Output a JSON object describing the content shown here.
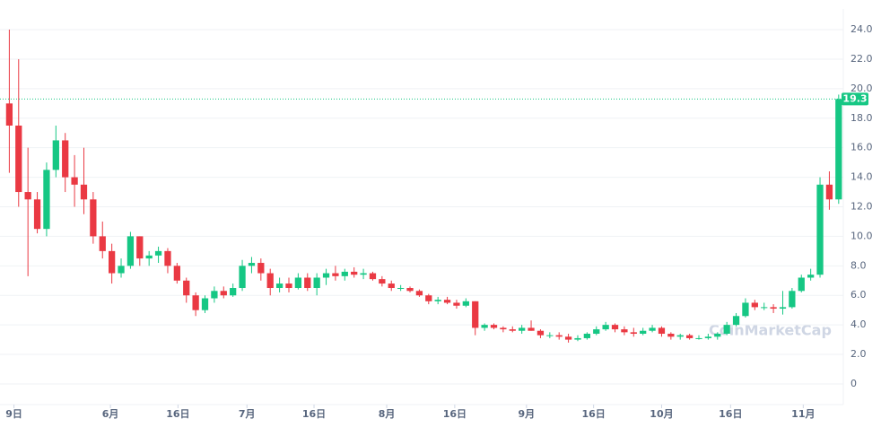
{
  "chart_data": {
    "type": "candlestick",
    "x": [
      0,
      2,
      4,
      6,
      8,
      10,
      12,
      14,
      16,
      18,
      20,
      22,
      24,
      26,
      28,
      30,
      32,
      34,
      36,
      38,
      40,
      42,
      44,
      46,
      48,
      50,
      52,
      54,
      56,
      58,
      60,
      62,
      64,
      66,
      68,
      70,
      72,
      74,
      76,
      78,
      80,
      82,
      84,
      86,
      88,
      90,
      92,
      94,
      96,
      98,
      100,
      102,
      104,
      106,
      108,
      110,
      112,
      114,
      116,
      118,
      120,
      122,
      124,
      126,
      128,
      130,
      132,
      134,
      136,
      138,
      140,
      142,
      144,
      146,
      148,
      150,
      152,
      154,
      156,
      158,
      160,
      162,
      164,
      166,
      168,
      170,
      172,
      174,
      176,
      178
    ],
    "open": [
      19,
      17.5,
      13,
      12.5,
      10.5,
      14.5,
      16.5,
      14,
      13.5,
      12.5,
      10,
      9,
      7.5,
      8,
      10,
      8.5,
      8.7,
      9,
      8,
      7,
      6,
      5,
      5.8,
      6.3,
      6,
      6.5,
      8,
      8.2,
      7.5,
      6.5,
      6.8,
      6.5,
      7.2,
      6.5,
      7.2,
      7.5,
      7.3,
      7.6,
      7.4,
      7.5,
      7.1,
      6.8,
      6.5,
      6.5,
      6.3,
      6,
      5.6,
      5.7,
      5.5,
      5.3,
      5.6,
      3.8,
      4,
      3.8,
      3.7,
      3.6,
      3.8,
      3.6,
      3.3,
      3.3,
      3.2,
      3,
      3.1,
      3.4,
      3.7,
      4,
      3.7,
      3.5,
      3.4,
      3.6,
      3.8,
      3.4,
      3.2,
      3.3,
      3.1,
      3.1,
      3.2,
      3.4,
      4,
      4.6,
      5.5,
      5.2,
      5.2,
      5.1,
      5.2,
      6.3,
      7.2,
      7.4,
      13.5,
      12.5
    ],
    "high": [
      24,
      22,
      16,
      13,
      15,
      17.5,
      17,
      15.5,
      16,
      13,
      11,
      9.5,
      8.5,
      10.3,
      10,
      9,
      9.3,
      9.2,
      8.2,
      7.2,
      6.2,
      6,
      6.6,
      6.6,
      6.8,
      8.4,
      8.6,
      8.5,
      7.8,
      7.2,
      7.2,
      7.5,
      7.5,
      7.5,
      7.8,
      8,
      7.8,
      7.9,
      7.8,
      7.6,
      7.3,
      7,
      6.7,
      6.6,
      6.4,
      6.1,
      5.9,
      5.9,
      5.7,
      5.8,
      5.6,
      4.1,
      4.1,
      3.9,
      3.9,
      4,
      4.3,
      3.7,
      3.5,
      3.5,
      3.4,
      3.3,
      3.5,
      3.9,
      4.2,
      4.1,
      3.9,
      3.8,
      3.8,
      4,
      3.9,
      3.5,
      3.4,
      3.4,
      3.3,
      3.4,
      3.5,
      4.2,
      4.8,
      5.8,
      5.7,
      5.5,
      5.4,
      6.3,
      6.5,
      7.4,
      7.8,
      14,
      14.4,
      19.6
    ],
    "low": [
      14.3,
      12,
      7.3,
      10.2,
      10,
      14,
      13,
      12,
      11.5,
      9.5,
      8.5,
      6.8,
      7.2,
      7.8,
      8,
      8,
      8.2,
      7.5,
      6.8,
      5.5,
      4.6,
      4.8,
      5.5,
      5.8,
      5.9,
      6.3,
      7.5,
      7,
      6,
      6.2,
      6.2,
      6.4,
      6.3,
      6,
      6.7,
      7,
      7,
      7.2,
      7.1,
      7,
      6.6,
      6.3,
      6.3,
      6.2,
      5.9,
      5.4,
      5.4,
      5.4,
      5.1,
      5.2,
      3.3,
      3.6,
      3.7,
      3.5,
      3.5,
      3.4,
      3.6,
      3.1,
      3.1,
      3,
      2.8,
      2.9,
      3,
      3.3,
      3.6,
      3.5,
      3.3,
      3.2,
      3.3,
      3.5,
      3.2,
      3,
      3,
      3,
      3,
      3,
      3,
      3.3,
      3.9,
      4.5,
      5,
      5,
      4.8,
      4.7,
      5.1,
      6.2,
      7,
      7.2,
      11.8,
      12.2
    ],
    "close": [
      17.5,
      13,
      12.5,
      10.5,
      14.5,
      16.5,
      14,
      13.5,
      12.5,
      10,
      9,
      7.5,
      8,
      10,
      8.5,
      8.7,
      9,
      8,
      7,
      6,
      5,
      5.8,
      6.3,
      6,
      6.5,
      8,
      8.2,
      7.5,
      6.5,
      6.8,
      6.5,
      7.2,
      6.5,
      7.2,
      7.5,
      7.3,
      7.6,
      7.4,
      7.5,
      7.1,
      6.8,
      6.5,
      6.5,
      6.3,
      6,
      5.6,
      5.7,
      5.5,
      5.3,
      5.6,
      3.8,
      4,
      3.8,
      3.7,
      3.6,
      3.8,
      3.6,
      3.3,
      3.3,
      3.2,
      3,
      3.1,
      3.4,
      3.7,
      4,
      3.7,
      3.5,
      3.4,
      3.6,
      3.8,
      3.4,
      3.2,
      3.3,
      3.1,
      3.1,
      3.2,
      3.4,
      4,
      4.6,
      5.5,
      5.2,
      5.2,
      5.1,
      5.2,
      6.3,
      7.2,
      7.4,
      13.5,
      12.5,
      19.3
    ],
    "up_color": "#16c784",
    "down_color": "#ea3943",
    "xlim": [
      -2,
      179
    ],
    "xticks": [
      {
        "value": 1,
        "label": "9日"
      },
      {
        "value": 21.7,
        "label": "6月"
      },
      {
        "value": 36.2,
        "label": "16日"
      },
      {
        "value": 51,
        "label": "7月"
      },
      {
        "value": 65.4,
        "label": "16日"
      },
      {
        "value": 81,
        "label": "8月"
      },
      {
        "value": 95.6,
        "label": "16日"
      },
      {
        "value": 111,
        "label": "9月"
      },
      {
        "value": 125.4,
        "label": "16日"
      },
      {
        "value": 140,
        "label": "10月"
      },
      {
        "value": 154.8,
        "label": "16日"
      },
      {
        "value": 170.4,
        "label": "11月"
      }
    ],
    "ylim": [
      -1.4,
      25.4
    ],
    "yticks": [
      0,
      {
        "value": 2,
        "label": "2.0"
      },
      {
        "value": 4,
        "label": "4.0"
      },
      {
        "value": 6,
        "label": "6.0"
      },
      {
        "value": 8,
        "label": "8.0"
      },
      {
        "value": 10,
        "label": "10.0"
      },
      {
        "value": 12,
        "label": "12.0"
      },
      {
        "value": 14,
        "label": "14.0"
      },
      {
        "value": 16,
        "label": "16.0"
      },
      {
        "value": 18,
        "label": "18.0"
      },
      {
        "value": 20,
        "label": "20.0"
      },
      {
        "value": 22,
        "label": "22.0"
      },
      {
        "value": 24,
        "label": "24.0"
      }
    ],
    "grid": true,
    "last_price": {
      "value": 19.3,
      "label": "19.3"
    },
    "watermark": "CoinMarketCap"
  }
}
